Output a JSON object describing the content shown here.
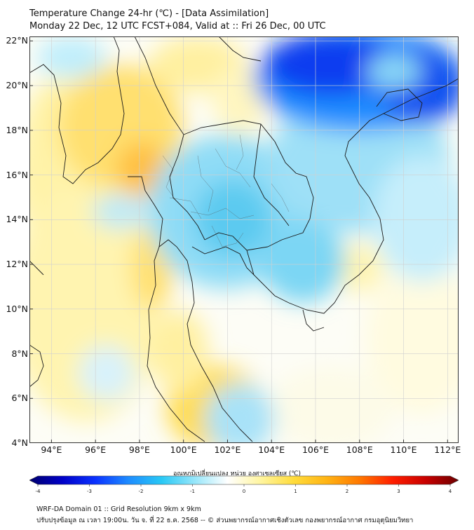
{
  "title_line1": "Temperature Change 24-hr (℃) - [Data Assimilation]",
  "title_line2": "Monday 22 Dec, 12 UTC FCST+084, Valid at :: Fri 26 Dec, 00 UTC",
  "map": {
    "lon_range": [
      93,
      112.5
    ],
    "lat_range": [
      4,
      22.2
    ],
    "lon_ticks": [
      "94°E",
      "96°E",
      "98°E",
      "100°E",
      "102°E",
      "104°E",
      "106°E",
      "108°E",
      "110°E",
      "112°E"
    ],
    "lat_ticks": [
      "4°N",
      "6°N",
      "8°N",
      "10°N",
      "12°N",
      "14°N",
      "16°N",
      "18°N",
      "20°N",
      "22°N"
    ],
    "gridlines": true
  },
  "colorbar": {
    "label": "อุณหภูมิเปลี่ยนแปลง หน่วย องศาเซลเซียส (℃)",
    "ticks": [
      "-4",
      "-3",
      "-2",
      "-1",
      "0",
      "1",
      "2",
      "3",
      "4"
    ],
    "range": [
      -4,
      4
    ],
    "colors": [
      "#00006e",
      "#0000c8",
      "#0a32ff",
      "#1e8cff",
      "#28c8f5",
      "#96e6fa",
      "#ffffff",
      "#fff5a0",
      "#ffdc3c",
      "#ffb414",
      "#ff7800",
      "#ff1e00",
      "#c80000",
      "#6e0000"
    ]
  },
  "footer_line1": "WRF-DA Domain 01 :: Grid Resolution 9km x 9km",
  "footer_line2": "ปรับปรุงข้อมูล ณ เวลา 19:00น. วัน จ. ที่ 22 ธ.ค. 2568 -- © ส่วนพยากรณ์อากาศเชิงตัวเลข กองพยากรณ์อากาศ กรมอุตุนิยมวิทยา"
}
